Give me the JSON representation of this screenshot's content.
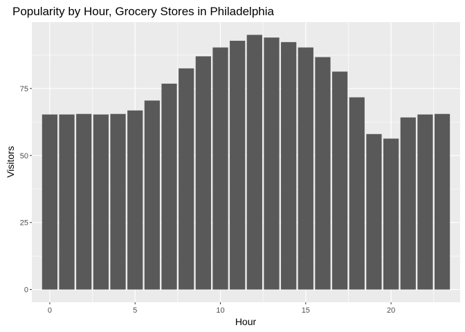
{
  "chart_data": {
    "type": "bar",
    "title": "Popularity by Hour, Grocery Stores in Philadelphia",
    "xlabel": "Hour",
    "ylabel": "Visitors",
    "x": [
      0,
      1,
      2,
      3,
      4,
      5,
      6,
      7,
      8,
      9,
      10,
      11,
      12,
      13,
      14,
      15,
      16,
      17,
      18,
      19,
      20,
      21,
      22,
      23
    ],
    "values": [
      65.3,
      65.3,
      65.5,
      65.3,
      65.5,
      66.8,
      70.5,
      76.8,
      82.5,
      87,
      90.3,
      92.8,
      95,
      94,
      92.3,
      90.3,
      86.7,
      81.3,
      71.7,
      58,
      56.3,
      64.2,
      65.3,
      65.5
    ],
    "xlim": [
      -1.05,
      24.05
    ],
    "ylim": [
      -4.75,
      99.75
    ],
    "x_ticks": [
      0,
      5,
      10,
      15,
      20
    ],
    "x_tick_labels": [
      "0",
      "5",
      "10",
      "15",
      "20"
    ],
    "y_ticks": [
      0,
      25,
      50,
      75
    ],
    "y_tick_labels": [
      "0",
      "25",
      "50",
      "75"
    ],
    "grid": true,
    "legend": "none",
    "colors": {
      "panel": "#ebebeb",
      "bar": "#595959",
      "grid_major": "#ffffff",
      "tick_text": "#4d4d4d"
    }
  }
}
